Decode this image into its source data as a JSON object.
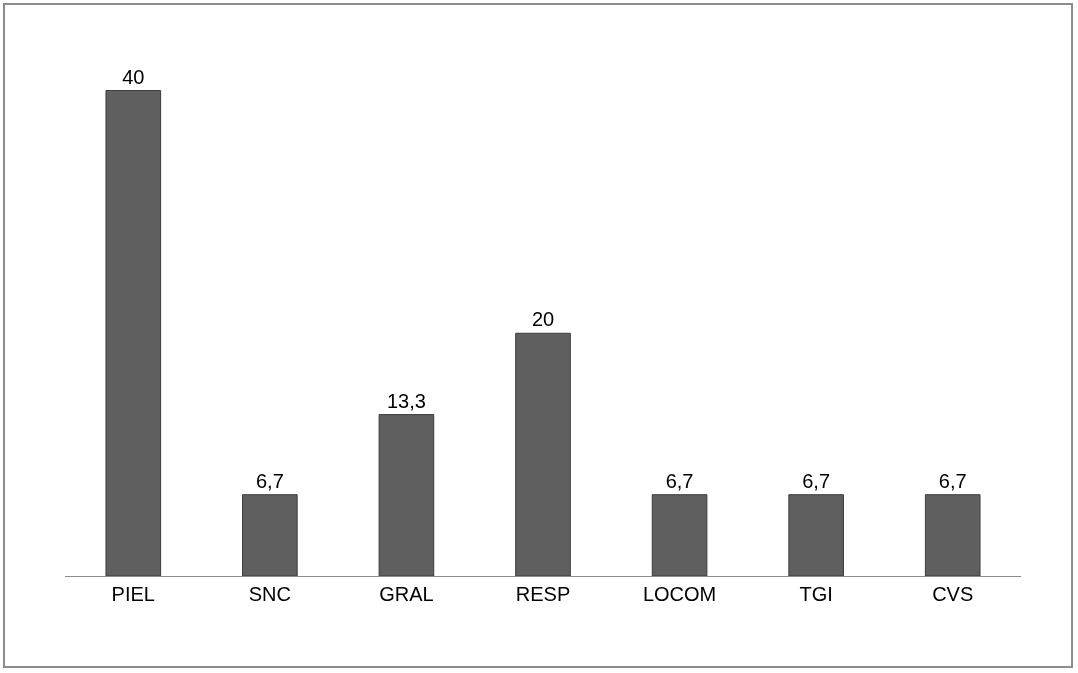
{
  "chart_data": {
    "type": "bar",
    "categories": [
      "PIEL",
      "SNC",
      "GRAL",
      "RESP",
      "LOCOM",
      "TGI",
      "CVS"
    ],
    "values": [
      40,
      6.7,
      13.3,
      20,
      6.7,
      6.7,
      6.7
    ],
    "value_labels": [
      "40",
      "6,7",
      "13,3",
      "20",
      "6,7",
      "6,7",
      "6,7"
    ],
    "color": "#5f5f5f",
    "grid": false,
    "legend": false
  }
}
